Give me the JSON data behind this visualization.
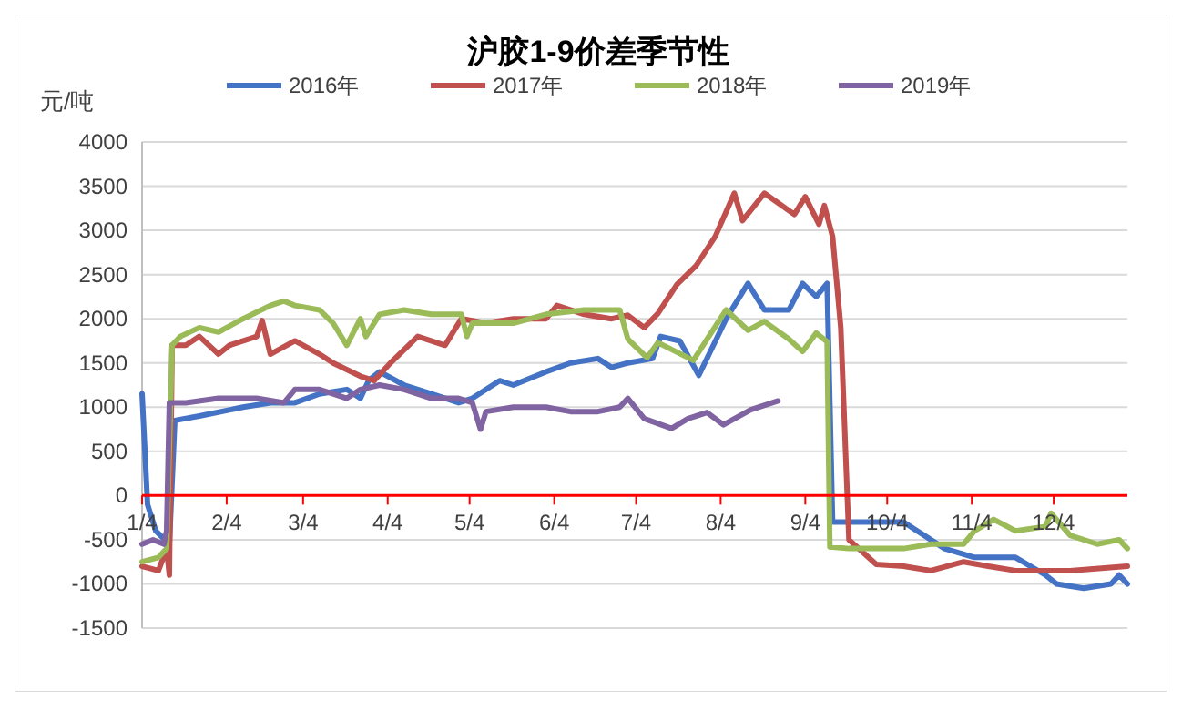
{
  "chart_data": {
    "type": "line",
    "title": "沪胶1-9价差季节性",
    "ylabel": "元/吨",
    "legend": "top",
    "grid": "y",
    "marker": "none",
    "line_style": "solid",
    "xlim": [
      "--01-04",
      "--12-31"
    ],
    "xticks": [
      {
        "value": "--01-04",
        "label": "1/4"
      },
      {
        "value": "--02-04",
        "label": "2/4"
      },
      {
        "value": "--03-04",
        "label": "3/4"
      },
      {
        "value": "--04-04",
        "label": "4/4"
      },
      {
        "value": "--05-04",
        "label": "5/4"
      },
      {
        "value": "--06-04",
        "label": "6/4"
      },
      {
        "value": "--07-04",
        "label": "7/4"
      },
      {
        "value": "--08-04",
        "label": "8/4"
      },
      {
        "value": "--09-04",
        "label": "9/4"
      },
      {
        "value": "--10-04",
        "label": "10/4"
      },
      {
        "value": "--11-04",
        "label": "11/4"
      },
      {
        "value": "--12-04",
        "label": "12/4"
      }
    ],
    "ylim": [
      -1500,
      4000
    ],
    "yticks": [
      -1500,
      -1000,
      -500,
      0,
      500,
      1000,
      1500,
      2000,
      2500,
      3000,
      3500,
      4000
    ],
    "series": [
      {
        "name": "2016年",
        "color": "#4472c4",
        "x": [
          "--01-04",
          "--01-06",
          "--01-09",
          "--01-14",
          "--01-16",
          "--01-25",
          "--02-10",
          "--02-20",
          "--03-01",
          "--03-10",
          "--03-20",
          "--03-25",
          "--03-28",
          "--04-01",
          "--04-10",
          "--04-20",
          "--04-30",
          "--05-05",
          "--05-15",
          "--05-20",
          "--06-01",
          "--06-10",
          "--06-20",
          "--06-25",
          "--07-01",
          "--07-10",
          "--07-13",
          "--07-20",
          "--07-27",
          "--08-06",
          "--08-14",
          "--08-20",
          "--08-29",
          "--09-03",
          "--09-08",
          "--09-12",
          "--09-14",
          "--09-20",
          "--10-10",
          "--10-15",
          "--10-25",
          "--11-05",
          "--11-20",
          "--12-01",
          "--12-05",
          "--12-15",
          "--12-25",
          "--12-28",
          "--12-31"
        ],
        "values": [
          1150,
          -100,
          -400,
          -550,
          850,
          900,
          1000,
          1050,
          1050,
          1150,
          1200,
          1100,
          1300,
          1400,
          1250,
          1150,
          1050,
          1100,
          1300,
          1250,
          1400,
          1500,
          1550,
          1450,
          1500,
          1550,
          1800,
          1750,
          1360,
          2000,
          2400,
          2100,
          2100,
          2400,
          2250,
          2400,
          -300,
          -300,
          -300,
          -400,
          -600,
          -700,
          -700,
          -900,
          -1000,
          -1050,
          -1000,
          -900,
          -1000
        ]
      },
      {
        "name": "2017年",
        "color": "#c0504d",
        "x": [
          "--01-04",
          "--01-10",
          "--01-13",
          "--01-14",
          "--01-15",
          "--01-20",
          "--01-25",
          "--02-01",
          "--02-05",
          "--02-15",
          "--02-17",
          "--02-20",
          "--03-01",
          "--03-10",
          "--03-15",
          "--03-25",
          "--03-30",
          "--04-05",
          "--04-15",
          "--04-25",
          "--05-01",
          "--05-10",
          "--05-20",
          "--06-01",
          "--06-05",
          "--06-15",
          "--06-25",
          "--07-01",
          "--07-07",
          "--07-12",
          "--07-19",
          "--07-26",
          "--08-02",
          "--08-09",
          "--08-12",
          "--08-20",
          "--08-31",
          "--09-04",
          "--09-09",
          "--09-11",
          "--09-14",
          "--09-17",
          "--09-20",
          "--09-30",
          "--10-10",
          "--10-20",
          "--11-01",
          "--11-10",
          "--11-20",
          "--12-01",
          "--12-10",
          "--12-31"
        ],
        "values": [
          -800,
          -850,
          -600,
          -900,
          1700,
          1700,
          1800,
          1600,
          1700,
          1800,
          1980,
          1600,
          1750,
          1600,
          1500,
          1350,
          1300,
          1500,
          1800,
          1700,
          2000,
          1950,
          2000,
          2000,
          2150,
          2050,
          2000,
          2040,
          1900,
          2060,
          2390,
          2600,
          2930,
          3420,
          3110,
          3420,
          3180,
          3380,
          3070,
          3280,
          2930,
          1900,
          -500,
          -780,
          -800,
          -850,
          -750,
          -800,
          -850,
          -850,
          -850,
          -800
        ]
      },
      {
        "name": "2018年",
        "color": "#9bbb59",
        "x": [
          "--01-04",
          "--01-10",
          "--01-13",
          "--01-15",
          "--01-18",
          "--01-25",
          "--02-01",
          "--02-10",
          "--02-20",
          "--02-25",
          "--03-01",
          "--03-10",
          "--03-15",
          "--03-20",
          "--03-25",
          "--03-27",
          "--04-01",
          "--04-10",
          "--04-20",
          "--05-01",
          "--05-03",
          "--05-05",
          "--05-20",
          "--06-01",
          "--06-15",
          "--06-28",
          "--07-01",
          "--07-08",
          "--07-12",
          "--07-25",
          "--07-30",
          "--08-06",
          "--08-14",
          "--08-20",
          "--08-29",
          "--09-03",
          "--09-08",
          "--09-12",
          "--09-13",
          "--09-20",
          "--10-10",
          "--10-20",
          "--11-01",
          "--11-05",
          "--11-12",
          "--11-20",
          "--12-01",
          "--12-03",
          "--12-10",
          "--12-20",
          "--12-28",
          "--12-31"
        ],
        "values": [
          -750,
          -700,
          -600,
          1700,
          1800,
          1900,
          1850,
          2000,
          2150,
          2200,
          2150,
          2100,
          1950,
          1700,
          2000,
          1800,
          2050,
          2100,
          2050,
          2050,
          1800,
          1950,
          1950,
          2050,
          2100,
          2100,
          1770,
          1560,
          1730,
          1530,
          1770,
          2100,
          1870,
          1970,
          1770,
          1630,
          1840,
          1740,
          -580,
          -600,
          -600,
          -550,
          -550,
          -400,
          -270,
          -400,
          -350,
          -200,
          -450,
          -550,
          -500,
          -600
        ]
      },
      {
        "name": "2019年",
        "color": "#8064a2",
        "x": [
          "--01-04",
          "--01-08",
          "--01-12",
          "--01-13",
          "--01-14",
          "--01-20",
          "--02-01",
          "--02-15",
          "--02-25",
          "--03-01",
          "--03-10",
          "--03-15",
          "--03-20",
          "--03-25",
          "--04-01",
          "--04-10",
          "--04-20",
          "--04-30",
          "--05-05",
          "--05-08",
          "--05-10",
          "--05-20",
          "--06-01",
          "--06-10",
          "--06-20",
          "--06-28",
          "--07-01",
          "--07-07",
          "--07-17",
          "--07-23",
          "--07-30",
          "--08-05",
          "--08-15",
          "--08-25"
        ],
        "values": [
          -550,
          -500,
          -550,
          -400,
          1050,
          1050,
          1100,
          1100,
          1050,
          1200,
          1200,
          1150,
          1100,
          1200,
          1250,
          1200,
          1100,
          1100,
          1050,
          750,
          950,
          1000,
          1000,
          950,
          950,
          1000,
          1100,
          870,
          760,
          870,
          940,
          800,
          970,
          1070
        ]
      }
    ]
  }
}
